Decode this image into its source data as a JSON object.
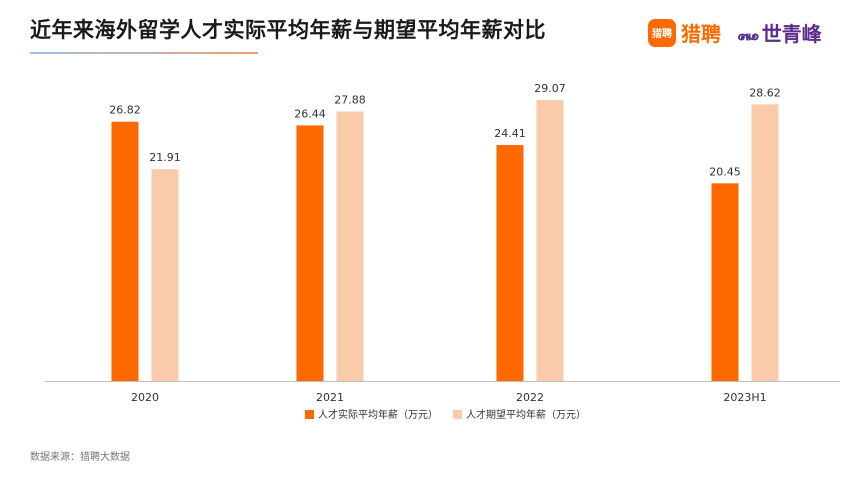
{
  "title": "近年来海外留学人才实际平均年薪与期望平均年薪对比",
  "logos": {
    "liepin_mark": "猎聘",
    "liepin_name": "猎聘",
    "sqf_mark": "꘏",
    "sqf_name": "世青峰"
  },
  "source": "数据来源：猎聘大数据",
  "colors": {
    "actual": "#ff6a00",
    "expected": "#f9cbab",
    "axis": "#bfbfbf"
  },
  "chart_data": {
    "type": "bar",
    "title": "近年来海外留学人才实际平均年薪与期望平均年薪对比",
    "categories": [
      "2020",
      "2021",
      "2022",
      "2023H1"
    ],
    "series": [
      {
        "name": "人才实际平均年薪（万元）",
        "values": [
          26.82,
          26.44,
          24.41,
          20.45
        ]
      },
      {
        "name": "人才期望平均年薪（万元）",
        "values": [
          21.91,
          27.88,
          29.07,
          28.62
        ]
      }
    ],
    "ylim": [
      0,
      30
    ],
    "grid": false,
    "legend": "bottom-center",
    "data_labels": true
  }
}
